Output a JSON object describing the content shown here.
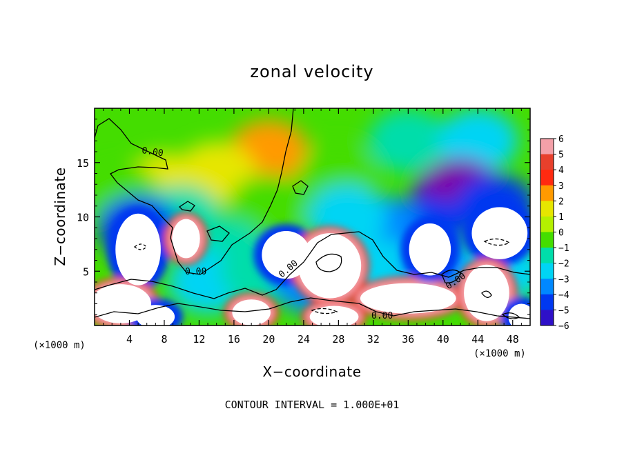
{
  "chart_data": {
    "type": "heatmap",
    "title": "zonal velocity",
    "xlabel": "X−coordinate",
    "ylabel": "Z−coordinate",
    "x_unit": "(×1000 m)",
    "z_unit": "(×1000 m)",
    "xlim": [
      0,
      50
    ],
    "zlim": [
      0,
      20
    ],
    "x_ticks": [
      4,
      8,
      12,
      16,
      20,
      24,
      28,
      32,
      36,
      40,
      44,
      48
    ],
    "z_ticks": [
      5,
      10,
      15
    ],
    "x_tick_labels": [
      "4",
      "8",
      "12",
      "16",
      "20",
      "24",
      "28",
      "32",
      "36",
      "40",
      "44",
      "48"
    ],
    "z_tick_labels": [
      "5",
      "10",
      "15"
    ],
    "colorbar": {
      "levels": [
        6,
        5,
        4,
        3,
        2,
        1,
        0,
        -1,
        -2,
        -3,
        -4,
        -5,
        -6
      ],
      "labels": [
        "6",
        "5",
        "4",
        "3",
        "2",
        "1",
        "0",
        "−1",
        "−2",
        "−3",
        "−4",
        "−5",
        "−6"
      ],
      "colors": [
        "#f4a0a8",
        "#e8402c",
        "#ff2a10",
        "#ff9a00",
        "#e6e600",
        "#b4f000",
        "#44dd00",
        "#00ddaa",
        "#00d4f4",
        "#0088ff",
        "#0038f0",
        "#2e10c8",
        "#7a00aa"
      ],
      "saturated_high_color": "#ffffff",
      "saturated_low_color": "#7a00aa"
    },
    "contour_interval_note": "CONTOUR INTERVAL = 1.000E+01",
    "contour_labels": [
      "0.00",
      "0.00",
      "0.00",
      "0.00",
      "0.00"
    ],
    "field_features": [
      {
        "x": 20,
        "z": 16,
        "value": 2.5
      },
      {
        "x": 14,
        "z": 14,
        "value": 1.5
      },
      {
        "x": 8,
        "z": 13,
        "value": 2
      },
      {
        "x": 3,
        "z": 12,
        "value": 0
      },
      {
        "x": 28,
        "z": 14,
        "value": -0.5
      },
      {
        "x": 36,
        "z": 17,
        "value": -1.5
      },
      {
        "x": 44,
        "z": 17,
        "value": -2
      },
      {
        "x": 41,
        "z": 12,
        "value": -5
      },
      {
        "x": 42,
        "z": 12.5,
        "value": -6
      },
      {
        "x": 46,
        "z": 11,
        "value": -4
      },
      {
        "x": 38,
        "z": 9,
        "value": -4.5
      },
      {
        "x": 33,
        "z": 9,
        "value": -3
      },
      {
        "x": 29,
        "z": 10,
        "value": -2
      },
      {
        "x": 20,
        "z": 11,
        "value": -0.5
      },
      {
        "x": 10,
        "z": 10,
        "value": -1
      },
      {
        "x": 5,
        "z": 9,
        "value": -4
      },
      {
        "x": 15,
        "z": 7,
        "value": -1.5
      },
      {
        "x": 13,
        "z": 4,
        "value": -2
      },
      {
        "x": 19,
        "z": 5,
        "value": -1
      },
      {
        "x": 25,
        "z": 4,
        "value": -3
      },
      {
        "x": 33,
        "z": 5,
        "value": -2
      },
      {
        "x": 40,
        "z": 5,
        "value": -3
      },
      {
        "x": 47,
        "z": 5,
        "value": -2
      },
      {
        "x": 5,
        "z": 7,
        "value": 8,
        "rx": 2.6,
        "rz": 3.3,
        "ring": "blue"
      },
      {
        "x": 10.5,
        "z": 8,
        "value": 7,
        "rx": 1.6,
        "rz": 1.8,
        "ring": "red"
      },
      {
        "x": 22,
        "z": 6.5,
        "value": 8,
        "rx": 2.8,
        "rz": 2.2,
        "ring": "blue"
      },
      {
        "x": 27,
        "z": 5.5,
        "value": 8,
        "rx": 3.6,
        "rz": 3.0,
        "ring": "red"
      },
      {
        "x": 36,
        "z": 2.5,
        "value": 8,
        "rx": 5.5,
        "rz": 1.4,
        "ring": "red"
      },
      {
        "x": 38.5,
        "z": 7,
        "value": 8,
        "rx": 2.4,
        "rz": 2.4,
        "ring": "blue"
      },
      {
        "x": 46.5,
        "z": 8.5,
        "value": 8,
        "rx": 3.2,
        "rz": 2.4,
        "ring": "blue"
      },
      {
        "x": 45,
        "z": 3,
        "value": 8,
        "rx": 2.6,
        "rz": 2.6,
        "ring": "red"
      },
      {
        "x": 3,
        "z": 2,
        "value": 8,
        "rx": 3.5,
        "rz": 1.8,
        "ring": "red"
      },
      {
        "x": 7,
        "z": 0.8,
        "value": 8,
        "rx": 2.2,
        "rz": 1.1,
        "ring": "blue"
      },
      {
        "x": 18,
        "z": 1.2,
        "value": 8,
        "rx": 2.2,
        "rz": 1.2,
        "ring": "red"
      },
      {
        "x": 27.5,
        "z": 0.8,
        "value": 8,
        "rx": 2.8,
        "rz": 1.0,
        "ring": "red"
      },
      {
        "x": 49,
        "z": 0.8,
        "value": 8,
        "rx": 1.5,
        "rz": 1.2,
        "ring": "blue"
      }
    ]
  }
}
